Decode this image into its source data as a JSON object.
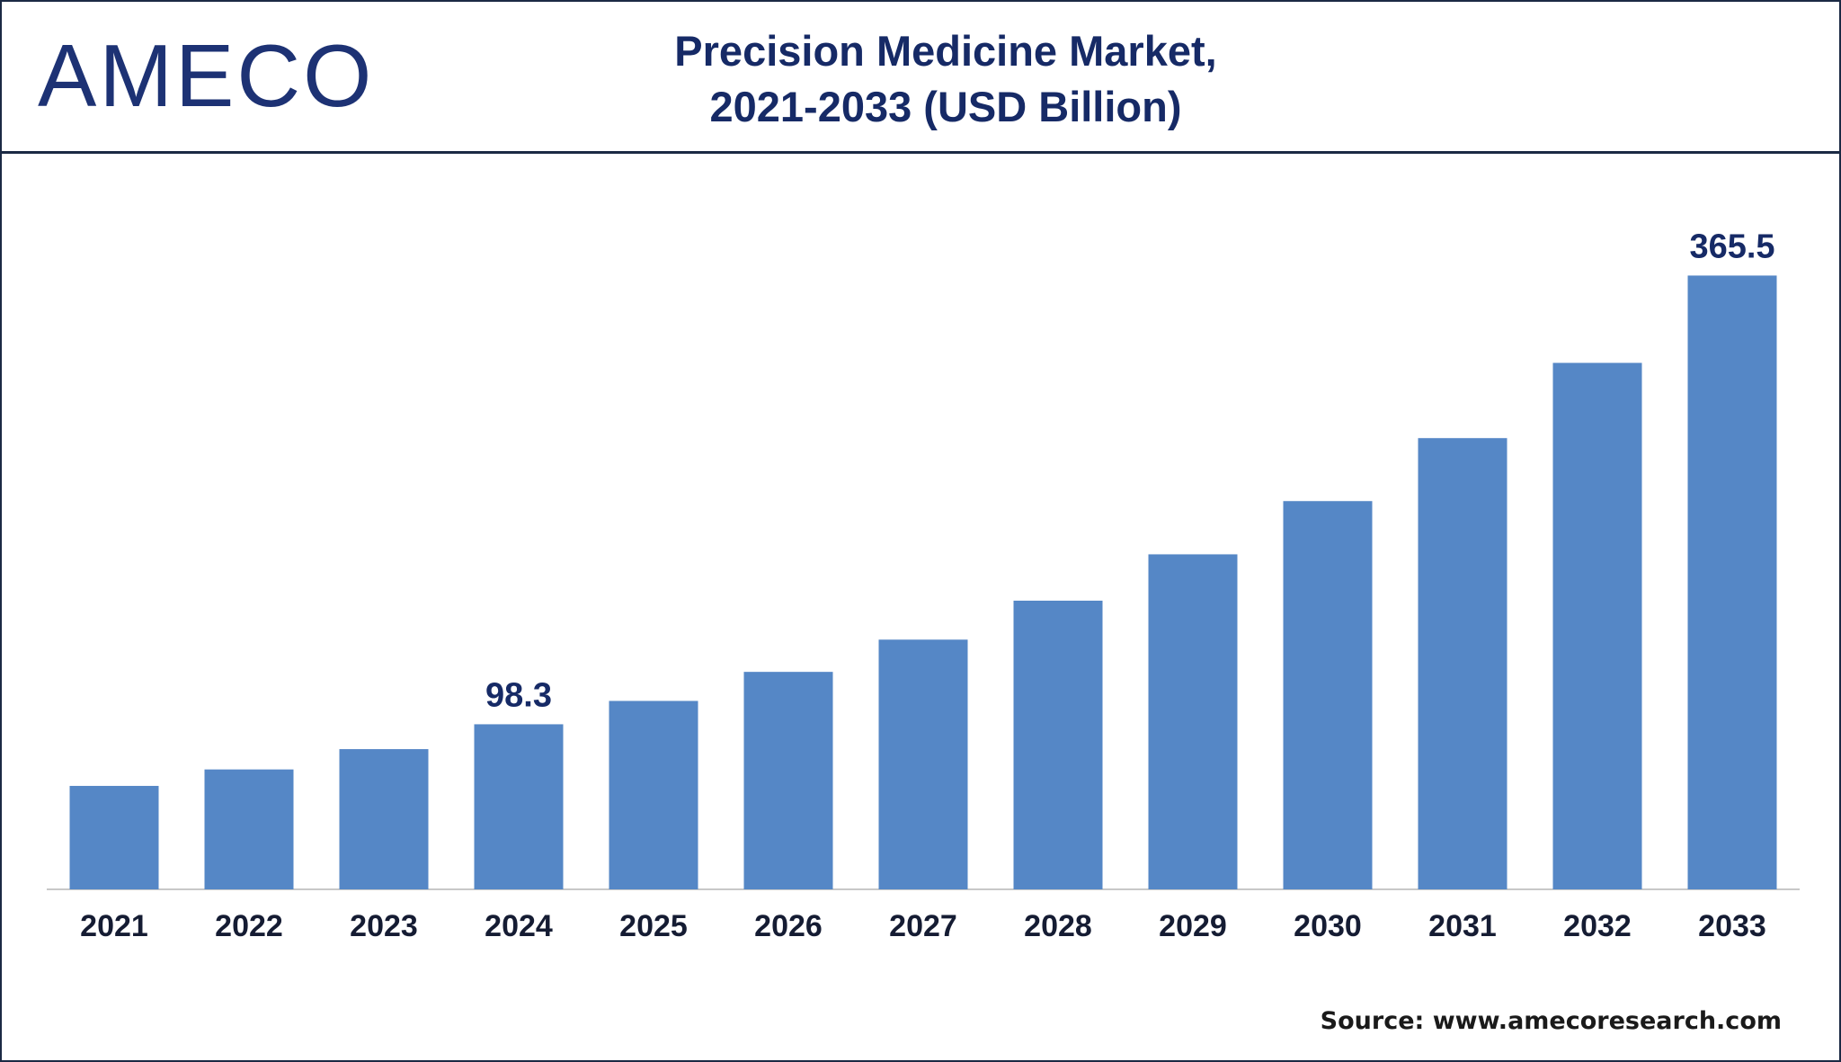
{
  "logo": {
    "text": "AMECO",
    "color": "#1d3274"
  },
  "header": {
    "title_line1": "Precision Medicine Market,",
    "title_line2": "2021-2033 (USD Billion)"
  },
  "source": "Source: www.amecoresearch.com",
  "colors": {
    "bar": "#5587c6",
    "title": "#162a66",
    "axis": "#c8c8c8"
  },
  "chart_data": {
    "type": "bar",
    "title": "Precision Medicine Market, 2021-2033 (USD Billion)",
    "xlabel": "",
    "ylabel": "",
    "categories": [
      "2021",
      "2022",
      "2023",
      "2024",
      "2025",
      "2026",
      "2027",
      "2028",
      "2029",
      "2030",
      "2031",
      "2032",
      "2033"
    ],
    "values": [
      61.6,
      71.4,
      83.5,
      98.3,
      112.2,
      129.5,
      148.7,
      171.9,
      199.5,
      231.2,
      268.7,
      313.5,
      365.5
    ],
    "ylim": [
      0,
      400
    ],
    "grid": false,
    "data_labels": [
      {
        "category": "2024",
        "text": "98.3"
      },
      {
        "category": "2033",
        "text": "365.5"
      }
    ]
  }
}
